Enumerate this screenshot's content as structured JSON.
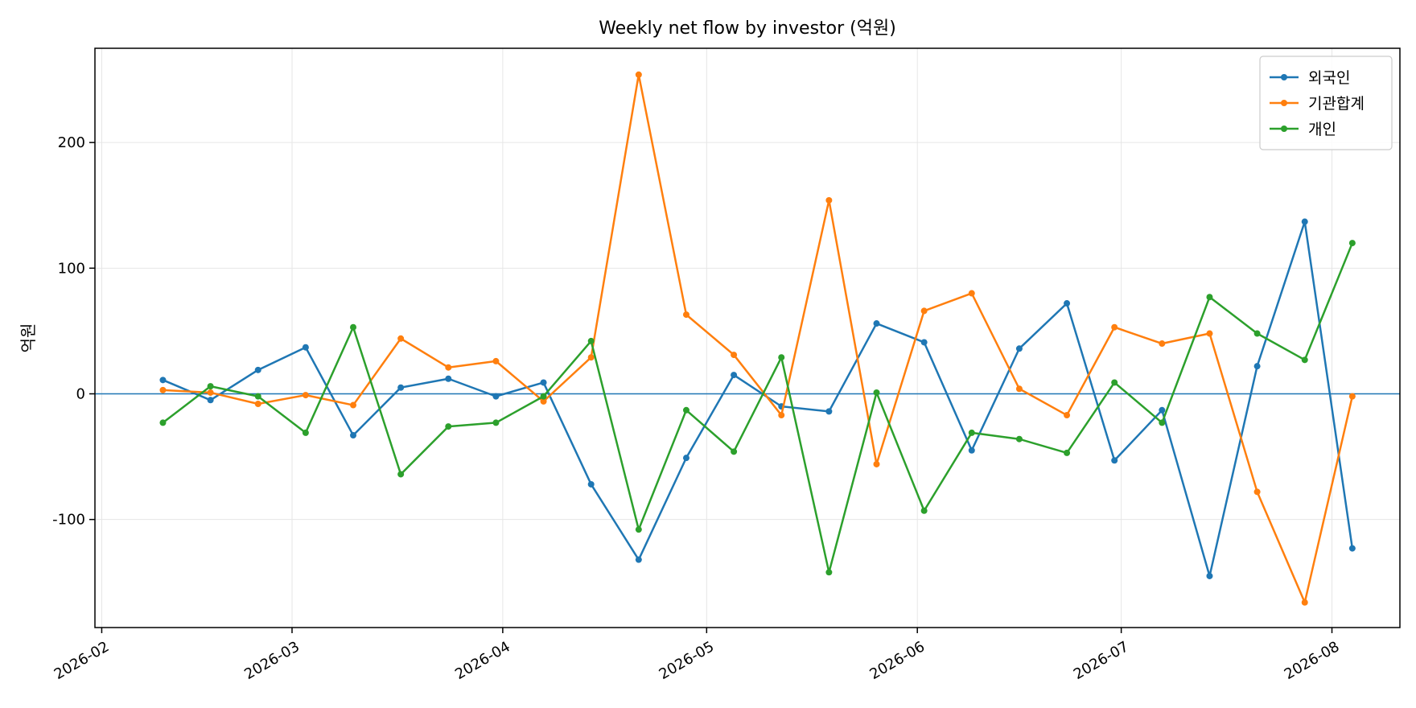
{
  "chart_data": {
    "type": "line",
    "title": "Weekly net flow by investor (억원)",
    "xlabel": "",
    "ylabel": "억원",
    "x": [
      "2026-02-10",
      "2026-02-17",
      "2026-02-24",
      "2026-03-03",
      "2026-03-10",
      "2026-03-17",
      "2026-03-24",
      "2026-03-31",
      "2026-04-07",
      "2026-04-14",
      "2026-04-21",
      "2026-04-28",
      "2026-05-05",
      "2026-05-12",
      "2026-05-19",
      "2026-05-26",
      "2026-06-02",
      "2026-06-09",
      "2026-06-16",
      "2026-06-23",
      "2026-06-30",
      "2026-07-07",
      "2026-07-14",
      "2026-07-21",
      "2026-07-28",
      "2026-08-04"
    ],
    "series": [
      {
        "name": "외국인",
        "color": "#1f77b4",
        "values": [
          11,
          -5,
          19,
          37,
          -33,
          5,
          12,
          -2,
          9,
          -72,
          -132,
          -51,
          15,
          -10,
          -14,
          56,
          41,
          -45,
          36,
          72,
          -53,
          -13,
          -145,
          22,
          137,
          -123
        ]
      },
      {
        "name": "기관합계",
        "color": "#ff7f0e",
        "values": [
          3,
          1,
          -8,
          -1,
          -9,
          44,
          21,
          26,
          -6,
          29,
          254,
          63,
          31,
          -17,
          154,
          -56,
          66,
          80,
          4,
          -17,
          53,
          40,
          48,
          -78,
          -166,
          -2
        ]
      },
      {
        "name": "개인",
        "color": "#2ca02c",
        "values": [
          -23,
          6,
          -2,
          -31,
          53,
          -64,
          -26,
          -23,
          -2,
          42,
          -108,
          -13,
          -46,
          29,
          -142,
          1,
          -93,
          -31,
          -36,
          -47,
          9,
          -23,
          77,
          48,
          27,
          120
        ]
      }
    ],
    "xticks": [
      "2026-02",
      "2026-03",
      "2026-04",
      "2026-05",
      "2026-06",
      "2026-07",
      "2026-08"
    ],
    "yticks": [
      -100,
      0,
      100,
      200
    ],
    "xlim": [
      "2026-01-31",
      "2026-08-11"
    ],
    "ylim": [
      -186,
      275
    ],
    "zero_line": true,
    "grid": true,
    "legend_position": "top-right",
    "marker": "circle"
  }
}
